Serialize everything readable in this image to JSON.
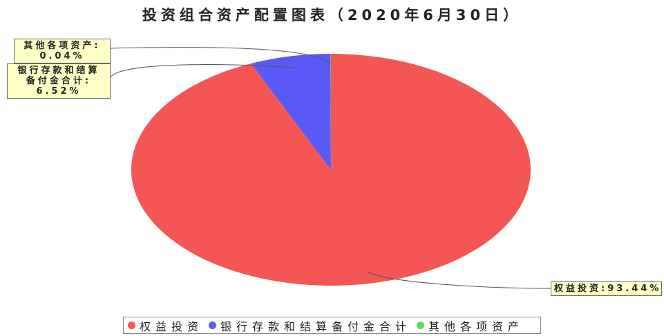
{
  "chart_data": {
    "type": "pie",
    "title": "投资组合资产配置图表（2020年6月30日）",
    "categories": [
      "权益投资",
      "银行存款和结算备付金合计",
      "其他各项资产"
    ],
    "values": [
      93.44,
      6.52,
      0.04
    ],
    "colors": [
      "#f45656",
      "#5959f5",
      "#5ede5e"
    ],
    "data_labels": [
      {
        "name": "权益投资:",
        "value": "93.44%"
      },
      {
        "name": "银行存款和结算备付金合计:",
        "value": "6.52%"
      },
      {
        "name": "其他各项资产:",
        "value": "0.04%"
      }
    ],
    "legend": "bottom"
  }
}
